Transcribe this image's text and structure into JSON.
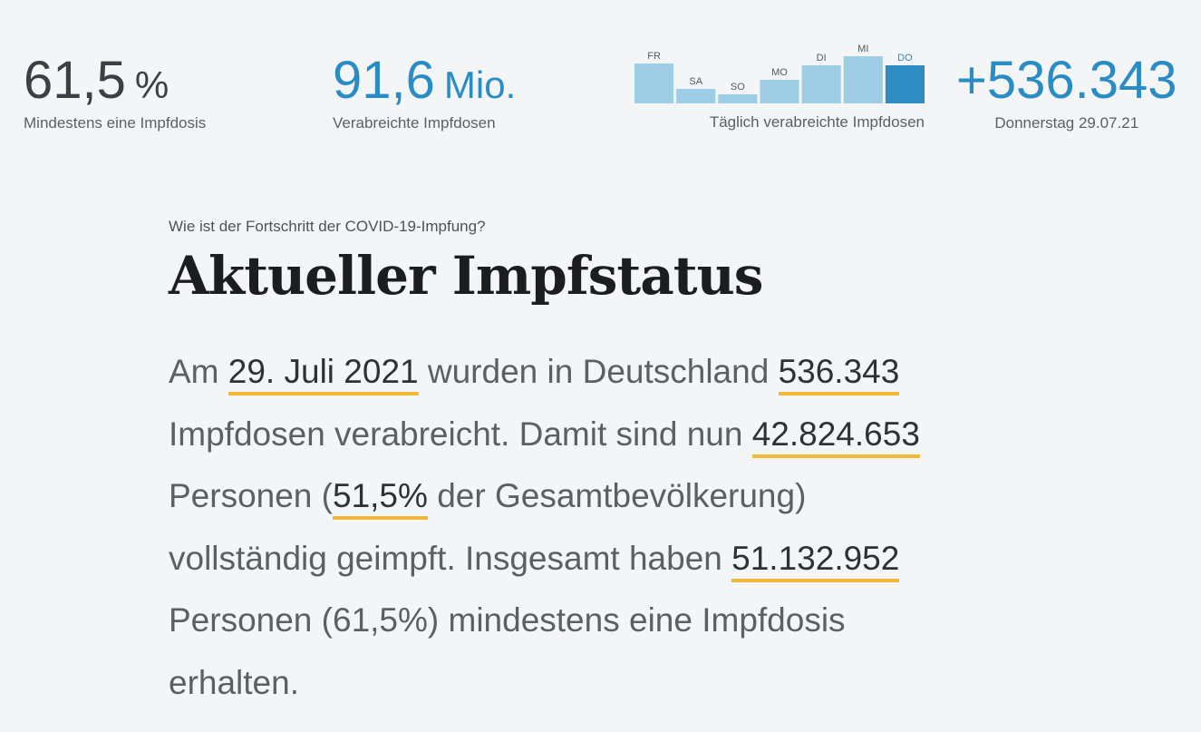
{
  "stats": {
    "first_dose": {
      "value": "61,5",
      "unit": "%",
      "label": "Mindestens eine Impfdosis"
    },
    "total_doses": {
      "value": "91,6",
      "unit": "Mio.",
      "label": "Verabreichte Impfdosen"
    },
    "today": {
      "value": "+536.343",
      "label": "Donnerstag 29.07.21"
    }
  },
  "daily_chart": {
    "caption": "Täglich verabreichte Impfdosen",
    "colors": {
      "bar": "#9fcde6",
      "highlight": "#2e8cc3",
      "label": "#55595f",
      "highlight_label": "#2a8cc4"
    }
  },
  "chart_data": {
    "type": "bar",
    "categories": [
      "FR",
      "SA",
      "SO",
      "MO",
      "DI",
      "MI",
      "DO"
    ],
    "values": [
      44,
      16,
      10,
      26,
      42,
      52,
      42
    ],
    "highlight_index": 6,
    "ylim": [
      0,
      60
    ],
    "grid": false
  },
  "article": {
    "kicker": "Wie ist der Fortschritt der COVID-19-Impfung?",
    "headline": "Aktueller Impfstatus",
    "p1": "Am ",
    "date": "29. Juli 2021",
    "p2": " wurden in Deutschland ",
    "doses_day": "536.343",
    "p3": "Impfdosen verabreicht. Damit sind nun ",
    "fully_count": "42.824.653",
    "p4": "Personen (",
    "fully_pct": "51,5%",
    "p5": " der Gesamtbevölkerung)",
    "p6": "vollständig geimpft. Insgesamt haben ",
    "first_count": "51.132.952",
    "p7": "Personen (61,5%) mindestens eine Impfdosis",
    "p8": "erhalten."
  }
}
